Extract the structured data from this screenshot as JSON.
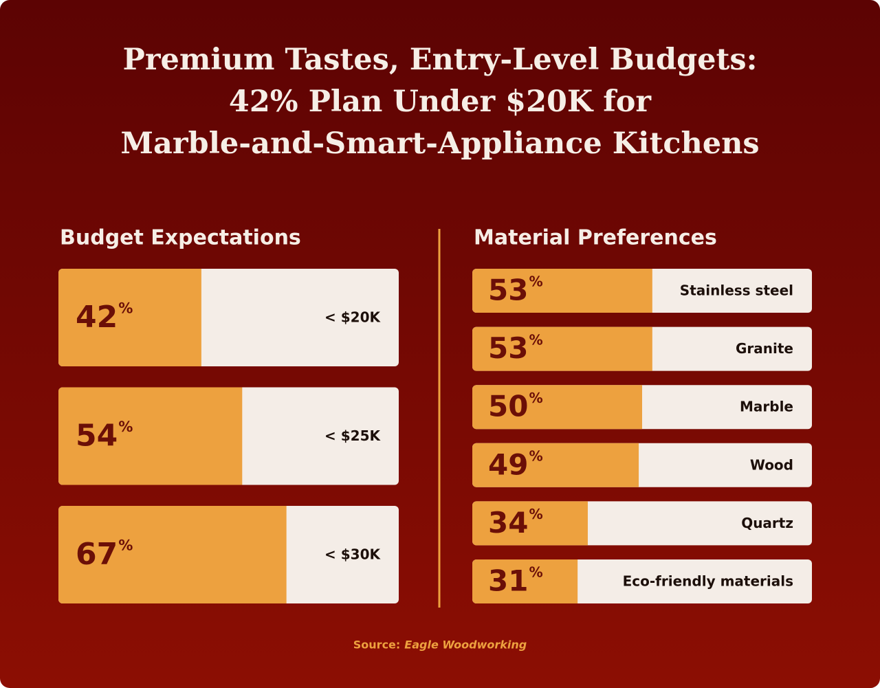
{
  "title": [
    "Premium Tastes, Entry-Level Budgets:",
    "42% Plan Under $20K for",
    "Marble-and-Smart-Appliance Kitchens"
  ],
  "source_label": "Source:",
  "source": "Eagle Woodworking",
  "chart_data": [
    {
      "type": "bar",
      "orientation": "horizontal",
      "title": "Budget Expectations",
      "categories": [
        "< $20K",
        "< $25K",
        "< $30K"
      ],
      "values": [
        42,
        54,
        67
      ],
      "unit": "%",
      "xlim": [
        0,
        100
      ],
      "color": "#eda13f",
      "track_color": "#f4ede7"
    },
    {
      "type": "bar",
      "orientation": "horizontal",
      "title": "Material Preferences",
      "categories": [
        "Stainless steel",
        "Granite",
        "Marble",
        "Wood",
        "Quartz",
        "Eco-friendly materials"
      ],
      "values": [
        53,
        53,
        50,
        49,
        34,
        31
      ],
      "unit": "%",
      "xlim": [
        0,
        100
      ],
      "color": "#eda13f",
      "track_color": "#f4ede7"
    }
  ]
}
